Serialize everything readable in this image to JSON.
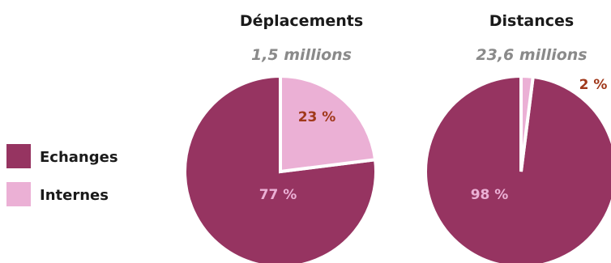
{
  "chart_data": {
    "type": "pie",
    "legend_position": "left",
    "series": [
      {
        "name": "Echanges",
        "color": "#963461"
      },
      {
        "name": "Internes",
        "color": "#ebb0d5"
      }
    ],
    "charts": [
      {
        "title": "Déplacements",
        "subtitle": "1,5 millions",
        "values": [
          77,
          23
        ],
        "labels": [
          "77 %",
          "23 %"
        ]
      },
      {
        "title": "Distances",
        "subtitle": "23,6 millions",
        "values": [
          98,
          2
        ],
        "labels": [
          "98 %",
          "2 %"
        ]
      }
    ]
  },
  "colors": {
    "echanges": "#963461",
    "internes": "#ebb0d5",
    "internes_label_dark": "#a0381a",
    "echanges_label": "#ebb0d5"
  }
}
